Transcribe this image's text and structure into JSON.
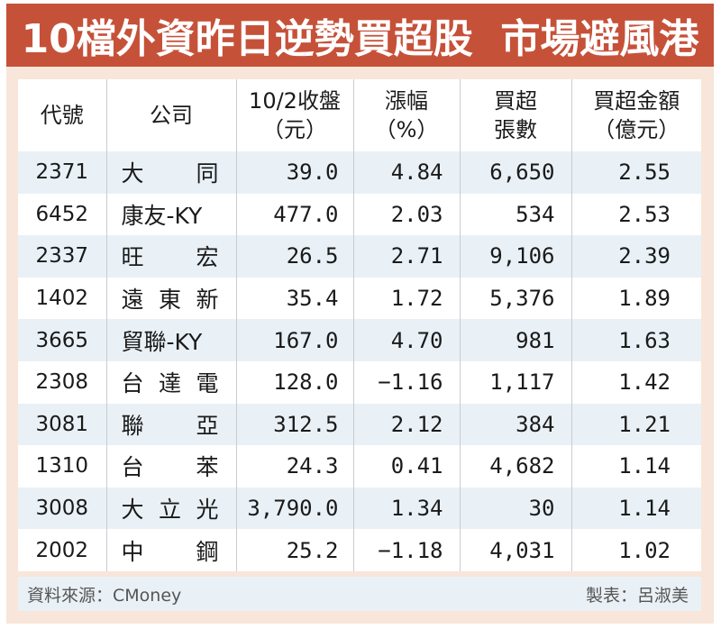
{
  "title": "10檔外資昨日逆勢買超股  市場避風港",
  "colors": {
    "title_bg": "#c65139",
    "frame_bg": "#f8e6da",
    "row_alt_bg": "#e9f1f7",
    "row_bg": "#ffffff"
  },
  "headers": [
    {
      "line1": "代號",
      "line2": ""
    },
    {
      "line1": "公司",
      "line2": ""
    },
    {
      "line1": "10/2收盤",
      "line2": "（元）"
    },
    {
      "line1": "漲幅",
      "line2": "（%）"
    },
    {
      "line1": "買超",
      "line2": "張數"
    },
    {
      "line1": "買超金額",
      "line2": "（億元）"
    }
  ],
  "rows": [
    {
      "code": "2371",
      "name": [
        "大",
        "同"
      ],
      "close": "39.0",
      "change": "4.84",
      "lots": "6,650",
      "amount": "2.55"
    },
    {
      "code": "6452",
      "name": [
        "康友-KY"
      ],
      "close": "477.0",
      "change": "2.03",
      "lots": "534",
      "amount": "2.53"
    },
    {
      "code": "2337",
      "name": [
        "旺",
        "宏"
      ],
      "close": "26.5",
      "change": "2.71",
      "lots": "9,106",
      "amount": "2.39"
    },
    {
      "code": "1402",
      "name": [
        "遠",
        "東",
        "新"
      ],
      "close": "35.4",
      "change": "1.72",
      "lots": "5,376",
      "amount": "1.89"
    },
    {
      "code": "3665",
      "name": [
        "貿聯-KY"
      ],
      "close": "167.0",
      "change": "4.70",
      "lots": "981",
      "amount": "1.63"
    },
    {
      "code": "2308",
      "name": [
        "台",
        "達",
        "電"
      ],
      "close": "128.0",
      "change": "−1.16",
      "lots": "1,117",
      "amount": "1.42"
    },
    {
      "code": "3081",
      "name": [
        "聯",
        "亞"
      ],
      "close": "312.5",
      "change": "2.12",
      "lots": "384",
      "amount": "1.21"
    },
    {
      "code": "1310",
      "name": [
        "台",
        "苯"
      ],
      "close": "24.3",
      "change": "0.41",
      "lots": "4,682",
      "amount": "1.14"
    },
    {
      "code": "3008",
      "name": [
        "大",
        "立",
        "光"
      ],
      "close": "3,790.0",
      "change": "1.34",
      "lots": "30",
      "amount": "1.14"
    },
    {
      "code": "2002",
      "name": [
        "中",
        "鋼"
      ],
      "close": "25.2",
      "change": "−1.18",
      "lots": "4,031",
      "amount": "1.02"
    }
  ],
  "footer": {
    "source": "資料來源：CMoney",
    "author": "製表：呂淑美"
  }
}
